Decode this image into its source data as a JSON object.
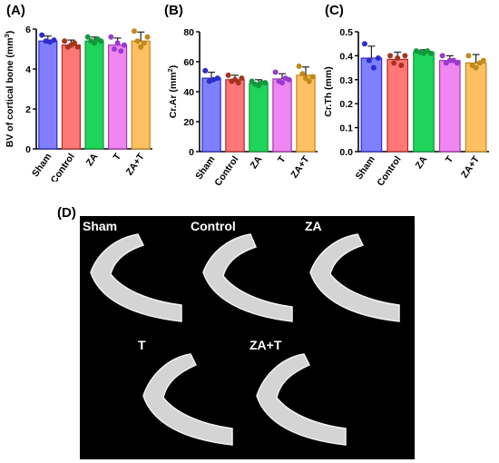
{
  "panels": {
    "A": "(A)",
    "B": "(B)",
    "C": "(C)",
    "D": "(D)"
  },
  "chart_data": [
    {
      "id": "A",
      "type": "bar",
      "ylabel_prefix": "BV of cortical bone (mm",
      "ylabel_sup": "3",
      "ylabel_suffix": ")",
      "categories": [
        "Sham",
        "Control",
        "ZA",
        "T",
        "ZA+T"
      ],
      "values": [
        5.4,
        5.2,
        5.4,
        5.2,
        5.4
      ],
      "errors": [
        0.25,
        0.25,
        0.2,
        0.35,
        0.45
      ],
      "points": [
        [
          5.7,
          5.4,
          5.35,
          5.45
        ],
        [
          5.4,
          5.1,
          5.2,
          5.3,
          5.1
        ],
        [
          5.6,
          5.4,
          5.3,
          5.5,
          5.4
        ],
        [
          5.6,
          5.0,
          5.3,
          4.9,
          5.2
        ],
        [
          5.9,
          5.4,
          5.1,
          5.3,
          5.6
        ]
      ],
      "ylim": [
        0,
        6
      ],
      "yticks": [
        0,
        2,
        4,
        6
      ],
      "ytick_labels": [
        "0",
        "2",
        "4",
        "6"
      ]
    },
    {
      "id": "B",
      "type": "bar",
      "ylabel_prefix": "Cr.Ar (mm",
      "ylabel_sup": "2",
      "ylabel_suffix": ")",
      "categories": [
        "Sham",
        "Control",
        "ZA",
        "T",
        "ZA+T"
      ],
      "values": [
        49,
        48,
        45.5,
        48.5,
        51
      ],
      "errors": [
        4,
        3,
        2.5,
        3.5,
        5.5
      ],
      "points": [
        [
          54,
          47,
          48,
          49
        ],
        [
          51,
          47,
          48,
          46,
          49
        ],
        [
          47,
          45,
          44,
          46,
          46
        ],
        [
          53,
          47,
          46,
          49,
          48
        ],
        [
          57,
          52,
          49,
          47,
          50
        ]
      ],
      "ylim": [
        0,
        80
      ],
      "yticks": [
        0,
        20,
        40,
        60,
        80
      ],
      "ytick_labels": [
        "0",
        "20",
        "40",
        "60",
        "80"
      ]
    },
    {
      "id": "C",
      "type": "bar",
      "ylabel_prefix": "Cr.Th (mm)",
      "ylabel_sup": "",
      "ylabel_suffix": "",
      "categories": [
        "Sham",
        "Control",
        "ZA",
        "T",
        "ZA+T"
      ],
      "values": [
        0.39,
        0.385,
        0.415,
        0.38,
        0.37
      ],
      "errors": [
        0.05,
        0.03,
        0.01,
        0.02,
        0.035
      ],
      "points": [
        [
          0.45,
          0.38,
          0.35,
          0.39
        ],
        [
          0.4,
          0.37,
          0.39,
          0.36,
          0.4
        ],
        [
          0.42,
          0.415,
          0.41,
          0.42,
          0.41
        ],
        [
          0.4,
          0.37,
          0.38,
          0.38,
          0.37
        ],
        [
          0.4,
          0.36,
          0.35,
          0.37,
          0.38
        ]
      ],
      "ylim": [
        0,
        0.5
      ],
      "yticks": [
        0,
        0.1,
        0.2,
        0.3,
        0.4,
        0.5
      ],
      "ytick_labels": [
        "0.0",
        "0.1",
        "0.2",
        "0.3",
        "0.4",
        "0.5"
      ]
    }
  ],
  "bar_colors": {
    "Sham": {
      "fill": "#7f7fff",
      "edge": "#2c2ccc",
      "dot": "#2c2ccc"
    },
    "Control": {
      "fill": "#ff7777",
      "edge": "#b52a2a",
      "dot": "#a8331e"
    },
    "ZA": {
      "fill": "#1fd45a",
      "edge": "#0e9a3b",
      "dot": "#0e9a3b"
    },
    "T": {
      "fill": "#ef86f1",
      "edge": "#a53aa8",
      "dot": "#9a3ad0"
    },
    "ZA+T": {
      "fill": "#ffbf63",
      "edge": "#c08a1a",
      "dot": "#c08a1a"
    }
  },
  "ct_labels": [
    "Sham",
    "Control",
    "ZA",
    "T",
    "ZA+T"
  ]
}
